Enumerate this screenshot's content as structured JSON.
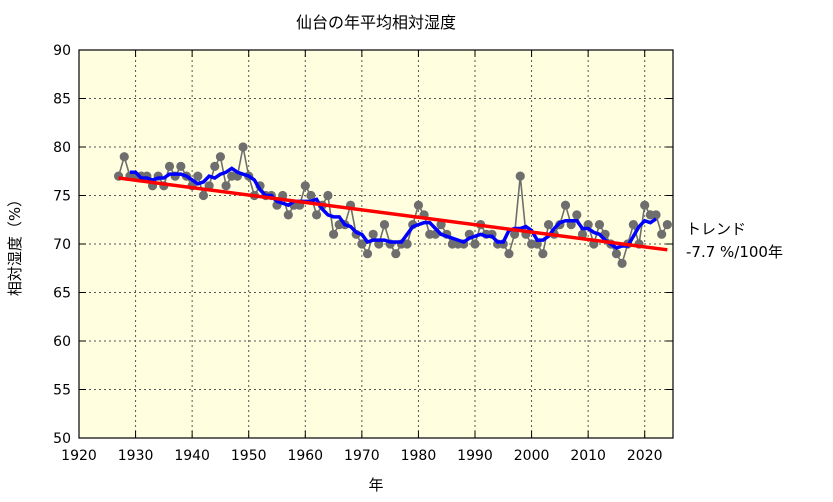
{
  "chart_data": {
    "type": "line",
    "title": "仙台の年平均相対湿度",
    "xlabel": "年",
    "ylabel": "相対湿度（%）",
    "xlim": [
      1920,
      2025
    ],
    "ylim": [
      50,
      90
    ],
    "xticks": [
      1920,
      1930,
      1940,
      1950,
      1960,
      1970,
      1980,
      1990,
      2000,
      2010,
      2020
    ],
    "yticks": [
      50,
      55,
      60,
      65,
      70,
      75,
      80,
      85,
      90
    ],
    "grid": true,
    "x": [
      1927,
      1928,
      1929,
      1930,
      1931,
      1932,
      1933,
      1934,
      1935,
      1936,
      1937,
      1938,
      1939,
      1940,
      1941,
      1942,
      1943,
      1944,
      1945,
      1946,
      1947,
      1948,
      1949,
      1950,
      1951,
      1952,
      1953,
      1954,
      1955,
      1956,
      1957,
      1958,
      1959,
      1960,
      1961,
      1962,
      1963,
      1964,
      1965,
      1966,
      1967,
      1968,
      1969,
      1970,
      1971,
      1972,
      1973,
      1974,
      1975,
      1976,
      1977,
      1978,
      1979,
      1980,
      1981,
      1982,
      1983,
      1984,
      1985,
      1986,
      1987,
      1988,
      1989,
      1990,
      1991,
      1992,
      1993,
      1994,
      1995,
      1996,
      1997,
      1998,
      1999,
      2000,
      2001,
      2002,
      2003,
      2004,
      2005,
      2006,
      2007,
      2008,
      2009,
      2010,
      2011,
      2012,
      2013,
      2014,
      2015,
      2016,
      2017,
      2018,
      2019,
      2020,
      2021,
      2022,
      2023,
      2024
    ],
    "series": [
      {
        "name": "年平均相対湿度",
        "color": "#6e6e6e",
        "values": [
          77,
          79,
          77,
          77,
          77,
          77,
          76,
          77,
          76,
          78,
          77,
          78,
          77,
          76,
          77,
          75,
          76,
          78,
          79,
          76,
          77,
          77,
          80,
          77,
          75,
          76,
          75,
          75,
          74,
          75,
          73,
          74,
          74,
          76,
          75,
          73,
          74,
          75,
          71,
          72,
          72,
          74,
          71,
          70,
          69,
          71,
          70,
          72,
          70,
          69,
          70,
          70,
          72,
          74,
          73,
          71,
          71,
          72,
          71,
          70,
          70,
          70,
          71,
          70,
          72,
          71,
          71,
          70,
          70,
          69,
          71,
          77,
          71,
          70,
          70,
          69,
          72,
          71,
          72,
          74,
          72,
          73,
          71,
          72,
          70,
          72,
          71,
          70,
          69,
          68,
          70,
          72,
          70,
          74,
          73,
          73,
          71,
          72
        ]
      }
    ],
    "moving_average": {
      "window": 5,
      "color": "#0000ff"
    },
    "trend": {
      "label": "トレンド",
      "value_label": "-7.7 %/100年",
      "slope_per_100y": -7.7,
      "start": [
        1927,
        76.8
      ],
      "end": [
        2024,
        69.4
      ],
      "color": "#ff0000"
    },
    "background": "#ffffe0"
  }
}
